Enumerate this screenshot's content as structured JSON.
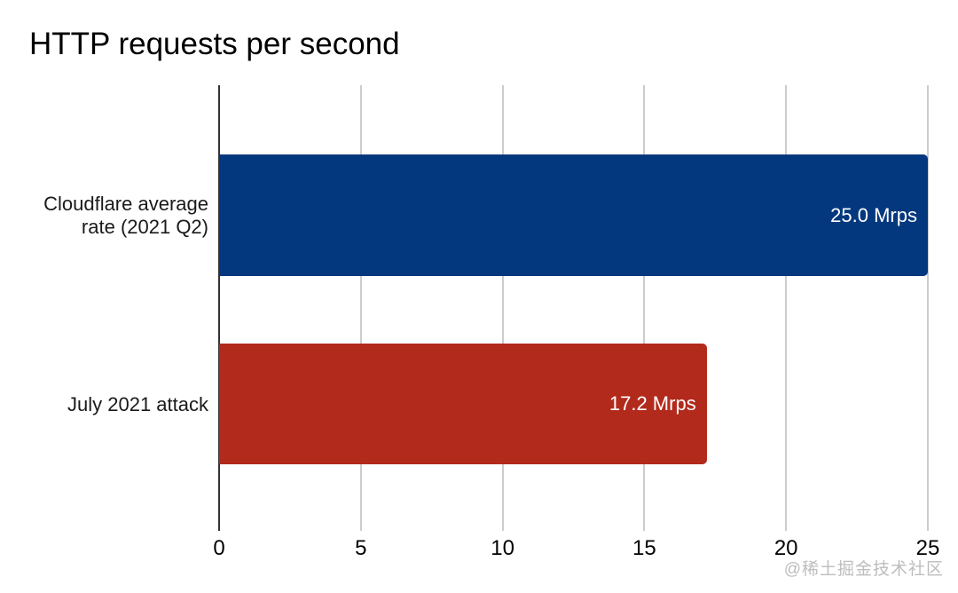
{
  "watermark": {
    "text": "@稀土掘金技术社区",
    "color": "#bdbdbd"
  },
  "chart_data": {
    "type": "bar",
    "orientation": "horizontal",
    "title": "HTTP requests per second",
    "categories": [
      "Cloudflare average rate (2021 Q2)",
      "July 2021 attack"
    ],
    "values": [
      25.0,
      17.2
    ],
    "value_labels": [
      "25.0 Mrps",
      "17.2 Mrps"
    ],
    "unit": "Mrps",
    "colors": [
      "#04387e",
      "#b22a1c"
    ],
    "xlabel": "",
    "ylabel": "",
    "xlim": [
      0,
      25
    ],
    "xticks": [
      0,
      5,
      10,
      15,
      20,
      25
    ],
    "grid": true,
    "legend": "none",
    "axis_color": "#333333",
    "gridline_color": "#cccccc",
    "tick_label_color": "#000000",
    "category_label_color": "#1a1a1a",
    "value_label_color": "#ffffff",
    "background_color": "#ffffff"
  }
}
